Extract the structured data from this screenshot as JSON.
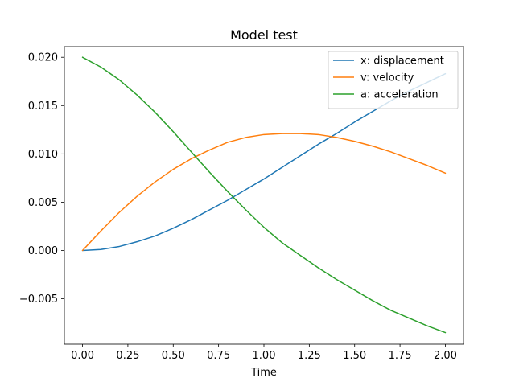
{
  "chart_data": {
    "type": "line",
    "title": "Model test",
    "xlabel": "Time",
    "ylabel": "",
    "xlim": [
      -0.1,
      2.1
    ],
    "ylim": [
      -0.0097,
      0.0211
    ],
    "xticks": [
      0.0,
      0.25,
      0.5,
      0.75,
      1.0,
      1.25,
      1.5,
      1.75,
      2.0
    ],
    "xtick_labels": [
      "0.00",
      "0.25",
      "0.50",
      "0.75",
      "1.00",
      "1.25",
      "1.50",
      "1.75",
      "2.00"
    ],
    "yticks": [
      -0.005,
      0.0,
      0.005,
      0.01,
      0.015,
      0.02
    ],
    "ytick_labels": [
      "−0.005",
      "0.000",
      "0.005",
      "0.010",
      "0.015",
      "0.020"
    ],
    "grid": false,
    "legend_position": "top-right",
    "x": [
      0.0,
      0.1,
      0.2,
      0.3,
      0.4,
      0.5,
      0.6,
      0.7,
      0.8,
      0.9,
      1.0,
      1.1,
      1.2,
      1.3,
      1.4,
      1.5,
      1.6,
      1.7,
      1.8,
      1.9,
      2.0
    ],
    "series": [
      {
        "name": "x: displacement",
        "color": "#1f77b4",
        "values": [
          0.0,
          0.0001,
          0.0004,
          0.0009,
          0.0015,
          0.0023,
          0.0032,
          0.0042,
          0.0052,
          0.0063,
          0.0074,
          0.0086,
          0.0098,
          0.011,
          0.0121,
          0.0133,
          0.0144,
          0.0155,
          0.0165,
          0.0174,
          0.0183
        ]
      },
      {
        "name": "v: velocity",
        "color": "#ff7f0e",
        "values": [
          0.0,
          0.002,
          0.0039,
          0.0056,
          0.0071,
          0.0084,
          0.0095,
          0.0104,
          0.0112,
          0.0117,
          0.012,
          0.0121,
          0.0121,
          0.012,
          0.0117,
          0.0113,
          0.0108,
          0.0102,
          0.0095,
          0.0088,
          0.008
        ]
      },
      {
        "name": "a: acceleration",
        "color": "#2ca02c",
        "values": [
          0.02,
          0.019,
          0.0177,
          0.0161,
          0.0143,
          0.0123,
          0.0102,
          0.0081,
          0.0061,
          0.0042,
          0.0024,
          0.0008,
          -0.0005,
          -0.0018,
          -0.003,
          -0.0041,
          -0.0052,
          -0.0062,
          -0.007,
          -0.0078,
          -0.0085
        ]
      }
    ]
  }
}
